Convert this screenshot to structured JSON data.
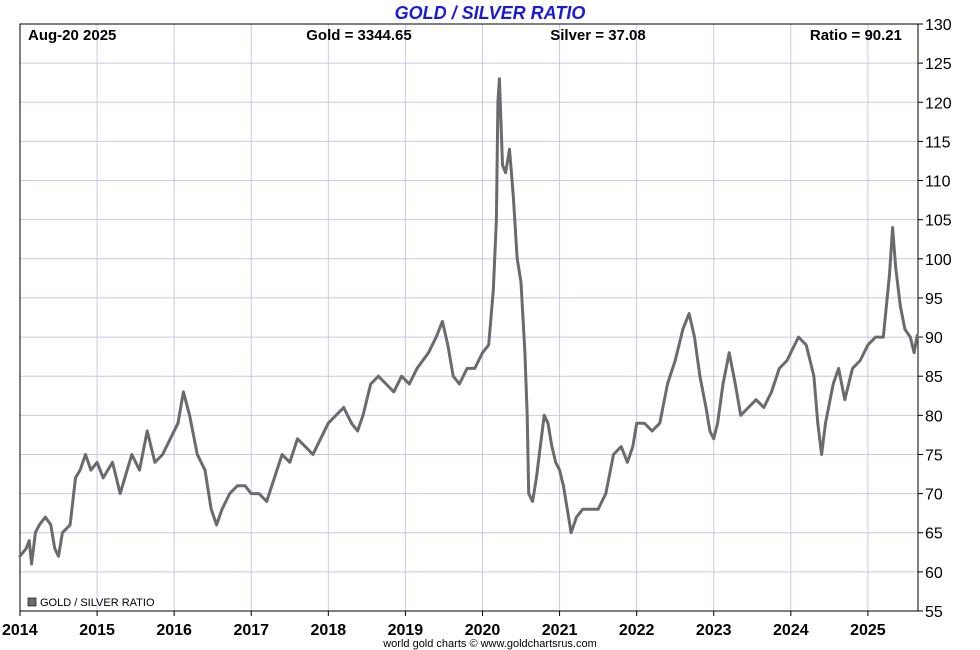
{
  "header": {
    "date": "Aug-20  2025",
    "gold": "Gold = 3344.65",
    "silver": "Silver = 37.08",
    "ratio": "Ratio = 90.21"
  },
  "legend": {
    "label": "GOLD / SILVER RATIO"
  },
  "footer": "world gold charts © www.goldchartsrus.com",
  "colors": {
    "title": "#1a1adc",
    "line": "#6b6b6b",
    "grid": "#c8c8ee"
  },
  "chart_data": {
    "type": "line",
    "title": "GOLD / SILVER RATIO",
    "xlabel": "",
    "ylabel": "",
    "ylim": [
      55,
      130
    ],
    "xlim": [
      2014,
      2025.65
    ],
    "grid": true,
    "legend_position": "bottom-left",
    "y_axis_side": "right",
    "yticks": [
      55,
      60,
      65,
      70,
      75,
      80,
      85,
      90,
      95,
      100,
      105,
      110,
      115,
      120,
      125,
      130
    ],
    "xticks": [
      2014,
      2015,
      2016,
      2017,
      2018,
      2019,
      2020,
      2021,
      2022,
      2023,
      2024,
      2025
    ],
    "series": [
      {
        "name": "GOLD / SILVER RATIO",
        "points": [
          [
            2014.0,
            62
          ],
          [
            2014.08,
            63
          ],
          [
            2014.12,
            64
          ],
          [
            2014.15,
            61
          ],
          [
            2014.2,
            65
          ],
          [
            2014.25,
            66
          ],
          [
            2014.33,
            67
          ],
          [
            2014.4,
            66
          ],
          [
            2014.45,
            63
          ],
          [
            2014.5,
            62
          ],
          [
            2014.55,
            65
          ],
          [
            2014.65,
            66
          ],
          [
            2014.72,
            72
          ],
          [
            2014.78,
            73
          ],
          [
            2014.85,
            75
          ],
          [
            2014.92,
            73
          ],
          [
            2015.0,
            74
          ],
          [
            2015.08,
            72
          ],
          [
            2015.2,
            74
          ],
          [
            2015.3,
            70
          ],
          [
            2015.45,
            75
          ],
          [
            2015.55,
            73
          ],
          [
            2015.65,
            78
          ],
          [
            2015.75,
            74
          ],
          [
            2015.85,
            75
          ],
          [
            2015.95,
            77
          ],
          [
            2016.05,
            79
          ],
          [
            2016.12,
            83
          ],
          [
            2016.2,
            80
          ],
          [
            2016.3,
            75
          ],
          [
            2016.4,
            73
          ],
          [
            2016.48,
            68
          ],
          [
            2016.55,
            66
          ],
          [
            2016.62,
            68
          ],
          [
            2016.72,
            70
          ],
          [
            2016.82,
            71
          ],
          [
            2016.92,
            71
          ],
          [
            2017.0,
            70
          ],
          [
            2017.1,
            70
          ],
          [
            2017.2,
            69
          ],
          [
            2017.3,
            72
          ],
          [
            2017.4,
            75
          ],
          [
            2017.5,
            74
          ],
          [
            2017.6,
            77
          ],
          [
            2017.7,
            76
          ],
          [
            2017.8,
            75
          ],
          [
            2017.9,
            77
          ],
          [
            2018.0,
            79
          ],
          [
            2018.1,
            80
          ],
          [
            2018.2,
            81
          ],
          [
            2018.3,
            79
          ],
          [
            2018.38,
            78
          ],
          [
            2018.45,
            80
          ],
          [
            2018.55,
            84
          ],
          [
            2018.65,
            85
          ],
          [
            2018.75,
            84
          ],
          [
            2018.85,
            83
          ],
          [
            2018.95,
            85
          ],
          [
            2019.05,
            84
          ],
          [
            2019.15,
            86
          ],
          [
            2019.3,
            88
          ],
          [
            2019.4,
            90
          ],
          [
            2019.48,
            92
          ],
          [
            2019.55,
            89
          ],
          [
            2019.62,
            85
          ],
          [
            2019.7,
            84
          ],
          [
            2019.8,
            86
          ],
          [
            2019.9,
            86
          ],
          [
            2020.0,
            88
          ],
          [
            2020.08,
            89
          ],
          [
            2020.14,
            96
          ],
          [
            2020.18,
            105
          ],
          [
            2020.2,
            120
          ],
          [
            2020.22,
            123
          ],
          [
            2020.26,
            112
          ],
          [
            2020.3,
            111
          ],
          [
            2020.35,
            114
          ],
          [
            2020.4,
            108
          ],
          [
            2020.45,
            100
          ],
          [
            2020.5,
            97
          ],
          [
            2020.55,
            88
          ],
          [
            2020.58,
            80
          ],
          [
            2020.6,
            70
          ],
          [
            2020.65,
            69
          ],
          [
            2020.7,
            72
          ],
          [
            2020.75,
            76
          ],
          [
            2020.8,
            80
          ],
          [
            2020.85,
            79
          ],
          [
            2020.9,
            76
          ],
          [
            2020.95,
            74
          ],
          [
            2021.0,
            73
          ],
          [
            2021.05,
            71
          ],
          [
            2021.1,
            68
          ],
          [
            2021.15,
            65
          ],
          [
            2021.22,
            67
          ],
          [
            2021.3,
            68
          ],
          [
            2021.4,
            68
          ],
          [
            2021.5,
            68
          ],
          [
            2021.6,
            70
          ],
          [
            2021.7,
            75
          ],
          [
            2021.8,
            76
          ],
          [
            2021.88,
            74
          ],
          [
            2021.95,
            76
          ],
          [
            2022.0,
            79
          ],
          [
            2022.1,
            79
          ],
          [
            2022.2,
            78
          ],
          [
            2022.3,
            79
          ],
          [
            2022.4,
            84
          ],
          [
            2022.5,
            87
          ],
          [
            2022.6,
            91
          ],
          [
            2022.68,
            93
          ],
          [
            2022.75,
            90
          ],
          [
            2022.82,
            85
          ],
          [
            2022.9,
            81
          ],
          [
            2022.95,
            78
          ],
          [
            2023.0,
            77
          ],
          [
            2023.05,
            79
          ],
          [
            2023.12,
            84
          ],
          [
            2023.2,
            88
          ],
          [
            2023.28,
            84
          ],
          [
            2023.35,
            80
          ],
          [
            2023.45,
            81
          ],
          [
            2023.55,
            82
          ],
          [
            2023.65,
            81
          ],
          [
            2023.75,
            83
          ],
          [
            2023.85,
            86
          ],
          [
            2023.95,
            87
          ],
          [
            2024.0,
            88
          ],
          [
            2024.1,
            90
          ],
          [
            2024.2,
            89
          ],
          [
            2024.3,
            85
          ],
          [
            2024.35,
            79
          ],
          [
            2024.4,
            75
          ],
          [
            2024.45,
            79
          ],
          [
            2024.55,
            84
          ],
          [
            2024.62,
            86
          ],
          [
            2024.7,
            82
          ],
          [
            2024.8,
            86
          ],
          [
            2024.9,
            87
          ],
          [
            2025.0,
            89
          ],
          [
            2025.1,
            90
          ],
          [
            2025.2,
            90
          ],
          [
            2025.28,
            98
          ],
          [
            2025.32,
            104
          ],
          [
            2025.36,
            99
          ],
          [
            2025.42,
            94
          ],
          [
            2025.48,
            91
          ],
          [
            2025.55,
            90
          ],
          [
            2025.6,
            88
          ],
          [
            2025.64,
            90.21
          ]
        ]
      }
    ]
  }
}
